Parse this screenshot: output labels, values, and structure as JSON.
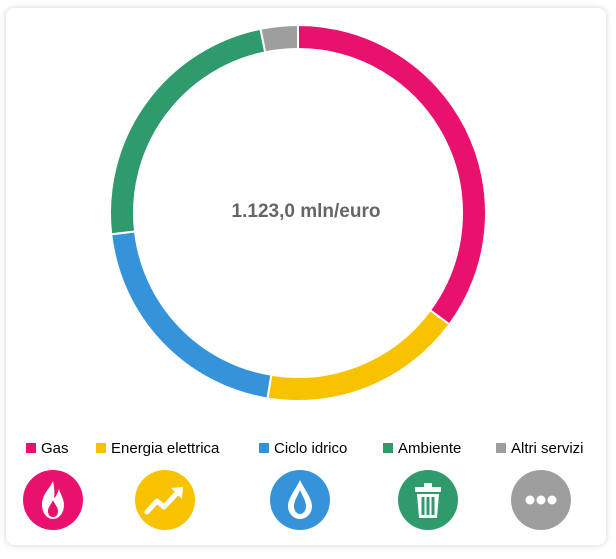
{
  "chart_data": {
    "type": "pie",
    "variant": "donut",
    "center_text": "1.123,0 mln/euro",
    "categories": [
      "Gas",
      "Energia elettrica",
      "Ciclo idrico",
      "Ambiente",
      "Altri servizi"
    ],
    "values": [
      35.1,
      17.5,
      20.6,
      23.6,
      3.2
    ],
    "colors": [
      "#E8126E",
      "#F7C200",
      "#3593D9",
      "#2F9A6C",
      "#9E9E9E"
    ],
    "legend_position": "bottom"
  },
  "legend": [
    {
      "label": "Gas",
      "color": "#E8126E",
      "icon": "flame-icon"
    },
    {
      "label": "Energia elettrica",
      "color": "#F7C200",
      "icon": "trend-up-icon"
    },
    {
      "label": "Ciclo idrico",
      "color": "#3593D9",
      "icon": "water-drop-icon"
    },
    {
      "label": "Ambiente",
      "color": "#2F9A6C",
      "icon": "trash-bin-icon"
    },
    {
      "label": "Altri servizi",
      "color": "#9E9E9E",
      "icon": "more-dots-icon"
    }
  ]
}
